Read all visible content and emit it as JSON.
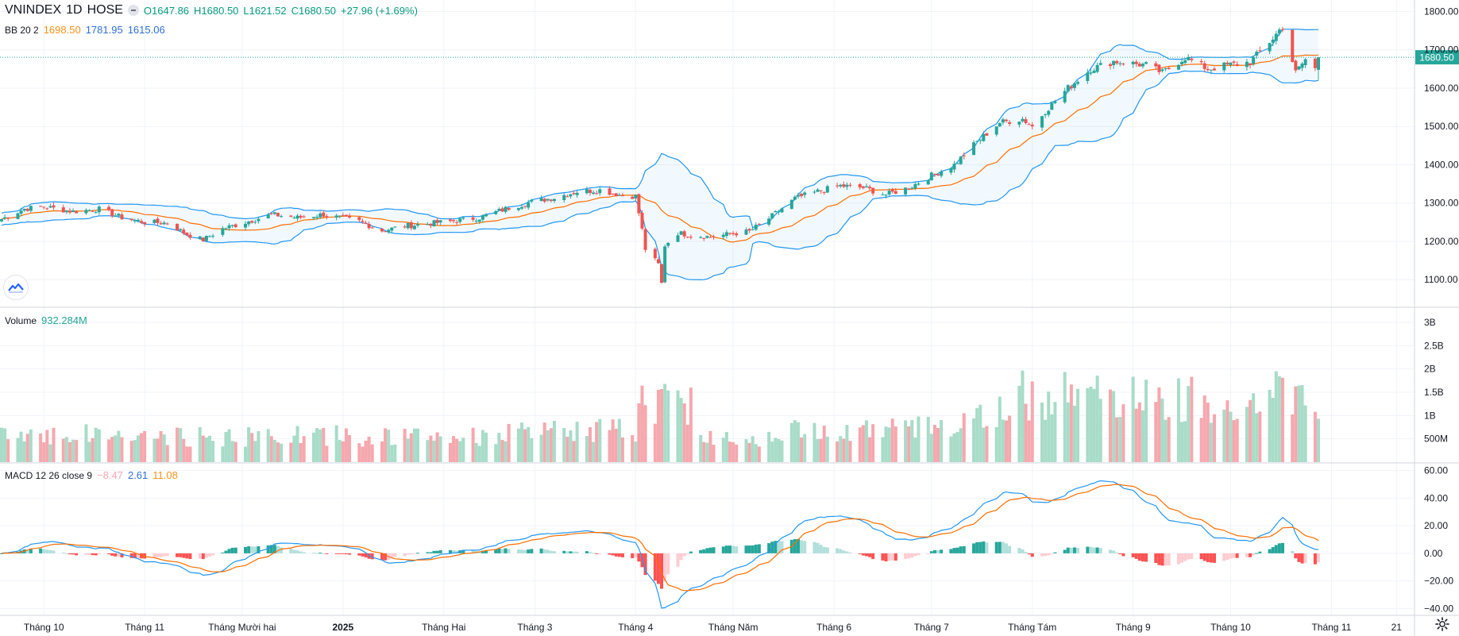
{
  "header": {
    "symbol": "VNINDEX",
    "interval": "1D",
    "exchange": "HOSE",
    "open": "O1647.86",
    "high": "H1680.50",
    "low": "L1621.52",
    "close": "C1680.50",
    "change": "+27.96 (+1.69%)"
  },
  "bb_legend": {
    "name": "BB 20 2",
    "basis": "1698.50",
    "upper": "1781.95",
    "lower": "1615.06"
  },
  "volume_legend": {
    "name": "Volume",
    "value": "932.284M"
  },
  "macd_legend": {
    "name": "MACD 12 26 close 9",
    "hist": "−8.47",
    "macd": "2.61",
    "signal": "11.08"
  },
  "price_tag": "1680.50",
  "colors": {
    "up": "#26a69a",
    "down": "#ef5350",
    "bb_band": "#2196f3",
    "bb_basis": "#ff6d00",
    "price_tag": "#26a69a"
  },
  "icons": {
    "logo": "tradingview-logo-icon",
    "settings": "gear-icon"
  },
  "chart_data": {
    "type": "candlestick",
    "price_axis": {
      "ylim": [
        1030,
        1830
      ],
      "ticks": [
        "1800.00",
        "1700.00",
        "1600.00",
        "1500.00",
        "1400.00",
        "1300.00",
        "1200.00",
        "1100.00"
      ]
    },
    "volume_axis": {
      "ylim": [
        0,
        3000000000
      ],
      "ticks": [
        "3B",
        "2.5B",
        "2B",
        "1.5B",
        "1B",
        "500M"
      ]
    },
    "macd_axis": {
      "ylim": [
        -45,
        65
      ],
      "ticks": [
        "60.00",
        "40.00",
        "20.00",
        "0.00",
        "−20.00",
        "−40.00"
      ]
    },
    "x_axis_labels": [
      "Tháng 10",
      "Tháng 11",
      "Tháng Mười hai",
      "2025",
      "Tháng Hai",
      "Tháng 3",
      "Tháng 4",
      "Tháng Năm",
      "Tháng 6",
      "Tháng 7",
      "Tháng Tám",
      "Tháng 9",
      "Tháng 10",
      "Tháng 11",
      "21"
    ],
    "x_axis_label_dates": [
      "2024-10-01",
      "2024-11-01",
      "2024-12-01",
      "2025-01-01",
      "2025-02-01",
      "2025-03-01",
      "2025-04-01",
      "2025-05-01",
      "2025-06-01",
      "2025-07-01",
      "2025-08-01",
      "2025-09-01",
      "2025-10-01",
      "2025-11-01",
      "2025-11-21"
    ],
    "first_date": "2024-09-18",
    "last_date": "2025-10-28",
    "anchors": [
      [
        "2024-09-18",
        1258
      ],
      [
        "2024-09-25",
        1285
      ],
      [
        "2024-10-01",
        1290
      ],
      [
        "2024-10-10",
        1278
      ],
      [
        "2024-10-18",
        1284
      ],
      [
        "2024-10-25",
        1262
      ],
      [
        "2024-11-01",
        1250
      ],
      [
        "2024-11-08",
        1248
      ],
      [
        "2024-11-14",
        1218
      ],
      [
        "2024-11-19",
        1204
      ],
      [
        "2024-11-25",
        1233
      ],
      [
        "2024-12-02",
        1250
      ],
      [
        "2024-12-10",
        1270
      ],
      [
        "2024-12-18",
        1262
      ],
      [
        "2024-12-26",
        1270
      ],
      [
        "2025-01-06",
        1252
      ],
      [
        "2025-01-13",
        1228
      ],
      [
        "2025-01-20",
        1240
      ],
      [
        "2025-02-03",
        1252
      ],
      [
        "2025-02-12",
        1262
      ],
      [
        "2025-02-20",
        1285
      ],
      [
        "2025-02-28",
        1303
      ],
      [
        "2025-03-07",
        1314
      ],
      [
        "2025-03-14",
        1330
      ],
      [
        "2025-03-21",
        1334
      ],
      [
        "2025-03-28",
        1320
      ],
      [
        "2025-04-01",
        1318
      ],
      [
        "2025-04-03",
        1230
      ],
      [
        "2025-04-04",
        1180
      ],
      [
        "2025-04-08",
        1140
      ],
      [
        "2025-04-09",
        1090
      ],
      [
        "2025-04-10",
        1190
      ],
      [
        "2025-04-14",
        1222
      ],
      [
        "2025-04-18",
        1216
      ],
      [
        "2025-04-24",
        1212
      ],
      [
        "2025-05-06",
        1226
      ],
      [
        "2025-05-12",
        1260
      ],
      [
        "2025-05-20",
        1312
      ],
      [
        "2025-05-27",
        1330
      ],
      [
        "2025-06-03",
        1345
      ],
      [
        "2025-06-10",
        1340
      ],
      [
        "2025-06-17",
        1322
      ],
      [
        "2025-06-24",
        1340
      ],
      [
        "2025-07-01",
        1372
      ],
      [
        "2025-07-08",
        1400
      ],
      [
        "2025-07-15",
        1460
      ],
      [
        "2025-07-22",
        1510
      ],
      [
        "2025-07-29",
        1520
      ],
      [
        "2025-08-01",
        1500
      ],
      [
        "2025-08-05",
        1540
      ],
      [
        "2025-08-12",
        1600
      ],
      [
        "2025-08-19",
        1650
      ],
      [
        "2025-08-26",
        1670
      ],
      [
        "2025-09-05",
        1660
      ],
      [
        "2025-09-10",
        1640
      ],
      [
        "2025-09-17",
        1680
      ],
      [
        "2025-09-24",
        1650
      ],
      [
        "2025-09-30",
        1660
      ],
      [
        "2025-10-07",
        1668
      ],
      [
        "2025-10-14",
        1730
      ],
      [
        "2025-10-17",
        1762
      ],
      [
        "2025-10-21",
        1640
      ],
      [
        "2025-10-24",
        1675
      ],
      [
        "2025-10-27",
        1650
      ],
      [
        "2025-10-28",
        1680.5
      ]
    ],
    "last_candle": {
      "open": 1647.86,
      "high": 1680.5,
      "low": 1621.52,
      "close": 1680.5,
      "volume": 932284000
    },
    "last_bb": {
      "basis": 1698.5,
      "upper": 1781.95,
      "lower": 1615.06
    },
    "last_macd": {
      "histogram": -8.47,
      "macd": 2.61,
      "signal": 11.08
    },
    "series": [
      {
        "name": "BB 20 2",
        "role": "bollinger"
      },
      {
        "name": "Volume",
        "role": "volume"
      },
      {
        "name": "MACD 12 26 close 9",
        "role": "macd"
      }
    ],
    "grid": true
  }
}
